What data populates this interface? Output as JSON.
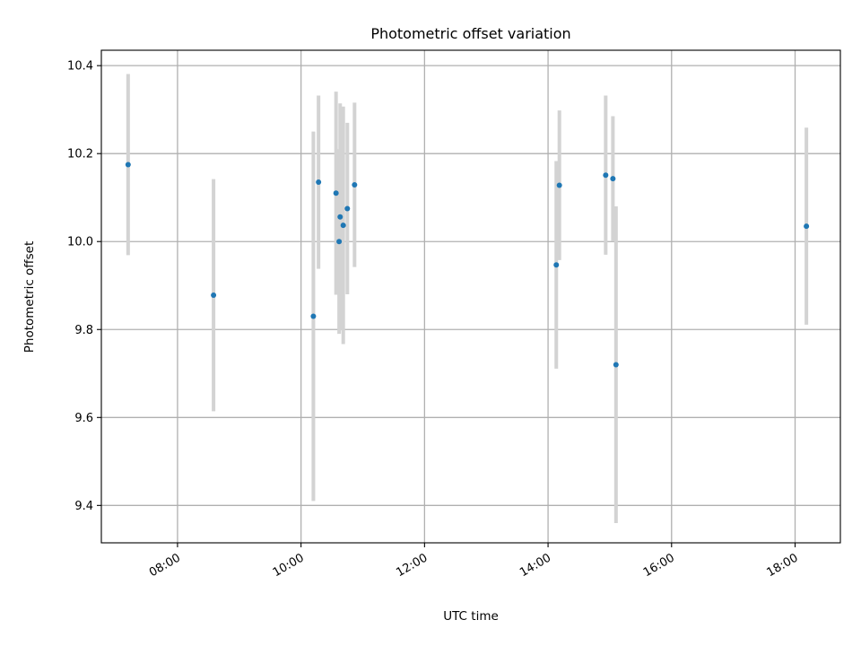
{
  "chart_data": {
    "type": "scatter",
    "title": "Photometric offset variation",
    "xlabel": "UTC time",
    "ylabel": "Photometric offset",
    "x_type": "time",
    "xlim": [
      "06:46",
      "18:44"
    ],
    "ylim": [
      9.315,
      10.435
    ],
    "x_ticks": [
      "08:00",
      "10:00",
      "12:00",
      "14:00",
      "16:00",
      "18:00"
    ],
    "y_ticks": [
      "9.4",
      "9.6",
      "9.8",
      "10.0",
      "10.2",
      "10.4"
    ],
    "grid": true,
    "point_color": "#1f77b4",
    "errorbar_color": "#d3d3d3",
    "points": [
      {
        "x": "07:12",
        "y": 10.175,
        "err": 0.206
      },
      {
        "x": "08:35",
        "y": 9.878,
        "err": 0.264
      },
      {
        "x": "10:12",
        "y": 9.83,
        "err": 0.42
      },
      {
        "x": "10:17",
        "y": 10.135,
        "err": 0.197
      },
      {
        "x": "10:34",
        "y": 10.11,
        "err": 0.231
      },
      {
        "x": "10:37",
        "y": 10.0,
        "err": 0.21
      },
      {
        "x": "10:38",
        "y": 10.056,
        "err": 0.258
      },
      {
        "x": "10:41",
        "y": 10.037,
        "err": 0.27
      },
      {
        "x": "10:45",
        "y": 10.075,
        "err": 0.195
      },
      {
        "x": "10:52",
        "y": 10.129,
        "err": 0.187
      },
      {
        "x": "14:08",
        "y": 9.947,
        "err": 0.236
      },
      {
        "x": "14:11",
        "y": 10.128,
        "err": 0.17
      },
      {
        "x": "14:56",
        "y": 10.151,
        "err": 0.181
      },
      {
        "x": "15:03",
        "y": 10.143,
        "err": 0.142
      },
      {
        "x": "15:06",
        "y": 9.72,
        "err": 0.36
      },
      {
        "x": "18:11",
        "y": 10.035,
        "err": 0.224
      }
    ]
  }
}
